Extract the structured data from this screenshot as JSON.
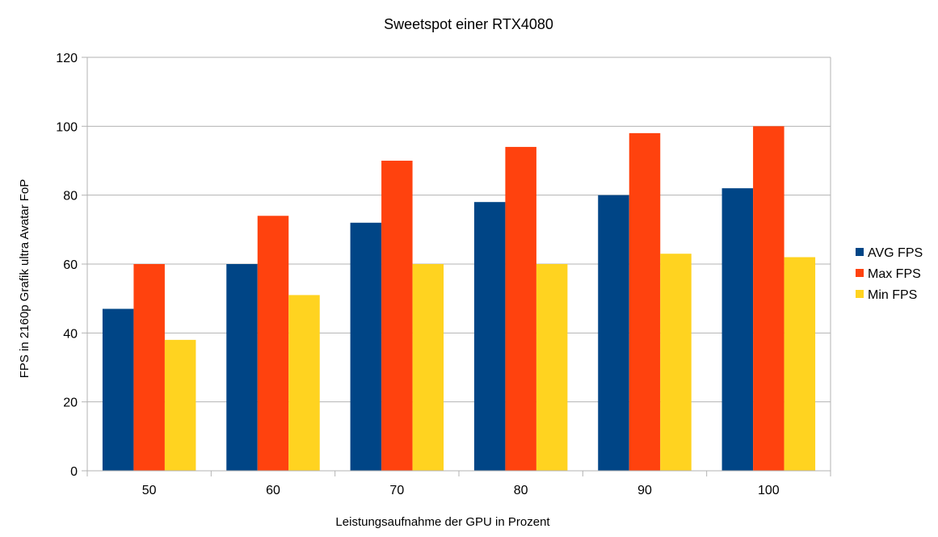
{
  "chart_data": {
    "type": "bar",
    "title": "Sweetspot einer RTX4080",
    "xlabel": "Leistungsaufnahme der GPU in Prozent",
    "ylabel": "FPS in 2160p Grafik ultra Avatar FoP",
    "categories": [
      "50",
      "60",
      "70",
      "80",
      "90",
      "100"
    ],
    "ylim": [
      0,
      120
    ],
    "yticks": [
      "0",
      "20",
      "40",
      "60",
      "80",
      "100",
      "120"
    ],
    "grid": true,
    "legend_position": "right",
    "series": [
      {
        "name": "AVG FPS",
        "color": "#004586",
        "values": [
          47,
          60,
          72,
          78,
          80,
          82
        ]
      },
      {
        "name": "Max FPS",
        "color": "#ff420e",
        "values": [
          60,
          74,
          90,
          94,
          98,
          100
        ]
      },
      {
        "name": "Min FPS",
        "color": "#ffd320",
        "values": [
          38,
          51,
          60,
          60,
          63,
          62
        ]
      }
    ]
  }
}
